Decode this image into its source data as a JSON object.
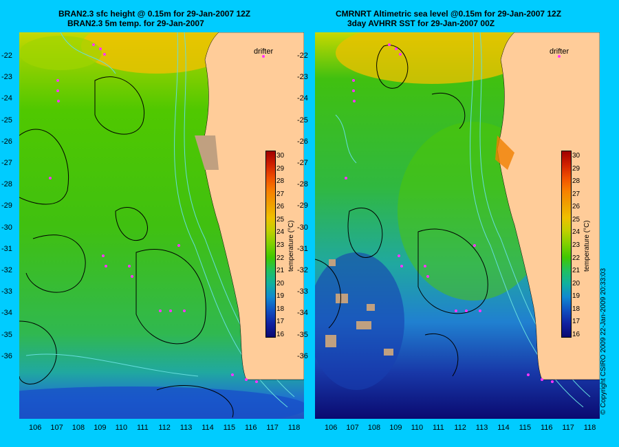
{
  "left_map": {
    "title_line1": "BRAN2.3 sfc height @ 0.15m for 29-Jan-2007 12Z",
    "title_line2": "BRAN2.3 5m temp. for 29-Jan-2007"
  },
  "right_map": {
    "title_line1": "CMRNRT Altimetric sea level  @0.15m  for 29-Jan-2007 12Z",
    "title_line2": "3day AVHRR SST for 29-Jan-2007 00Z"
  },
  "drifter_label": "drifter",
  "colorbar": {
    "label": "temperature (°C)",
    "ticks": [
      "30",
      "29",
      "28",
      "27",
      "26",
      "25",
      "24",
      "23",
      "22",
      "21",
      "20",
      "19",
      "18",
      "17",
      "16"
    ],
    "colors": [
      "#a00000",
      "#d02000",
      "#f05000",
      "#f88000",
      "#f0a000",
      "#f0c000",
      "#c0d000",
      "#80d000",
      "#40c800",
      "#20c060",
      "#10b0a0",
      "#1088d0",
      "#1050c0",
      "#1020a0",
      "#0a0a70"
    ]
  },
  "lat_ticks": [
    "-22",
    "-23",
    "-24",
    "-25",
    "-26",
    "-27",
    "-28",
    "-29",
    "-30",
    "-31",
    "-32",
    "-33",
    "-34",
    "-35",
    "-36"
  ],
  "lon_ticks": [
    "106",
    "107",
    "108",
    "109",
    "110",
    "111",
    "112",
    "113",
    "114",
    "115",
    "116",
    "117",
    "118"
  ],
  "copyright": "© Copyright CSIRO 2009   22-Jan-2009 20:33:03",
  "colors": {
    "background": "#00ccff",
    "land": "#ffcc99",
    "drifter": "#ff33ff",
    "contour": "#000000",
    "isobath": "#66dddd",
    "missing": "#c0a080"
  }
}
